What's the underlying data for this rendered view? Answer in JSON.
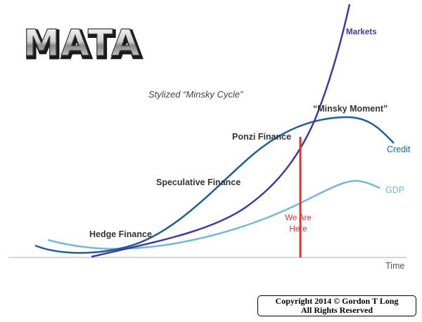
{
  "logo": {
    "text": "MATA"
  },
  "subtitle": "Stylized “Minsky Cycle”",
  "stages": {
    "hedge": "Hedge Finance",
    "speculative": "Speculative Finance",
    "ponzi": "Ponzi Finance",
    "minsky_moment": "“Minsky Moment”"
  },
  "curves": {
    "markets": "Markets",
    "credit": "Credit",
    "gdp": "GDP"
  },
  "axis": {
    "x_label": "Time"
  },
  "marker": {
    "line1": "We Are",
    "line2": "Here"
  },
  "copyright": {
    "line1": "Copyright 2014 © Gordon T Long",
    "line2": "All Rights Reserved"
  },
  "colors": {
    "credit": "#1f5f96",
    "gdp": "#74b8dc",
    "markets": "#3a3aa8",
    "marker": "#e03030",
    "axis": "#c8c8c8"
  }
}
